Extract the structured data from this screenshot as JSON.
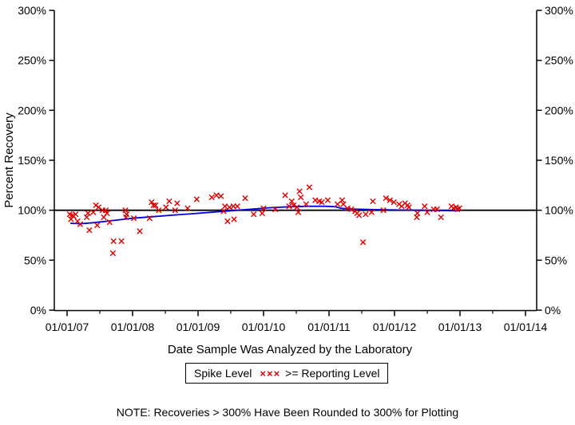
{
  "figure": {
    "y_axis_title": "Percent Recovery",
    "x_axis_title": "Date Sample Was Analyzed by the Laboratory",
    "note": "NOTE: Recoveries > 300% Have Been Rounded to 300% for Plotting",
    "legend": {
      "title": "Spike Level",
      "marker_symbols": "×××",
      "item_label": ">= Reporting Level"
    },
    "colors": {
      "marker": "#dd0000",
      "trend_line": "#0000dd",
      "axis": "#000000",
      "reference_line": "#000000"
    }
  },
  "chart_data": {
    "type": "scatter",
    "title": "",
    "xlabel": "Date Sample Was Analyzed by the Laboratory",
    "ylabel": "Percent Recovery",
    "xlim_years": [
      2006.8,
      2014.17
    ],
    "ylim": [
      0,
      300
    ],
    "grid": false,
    "legend_position": "bottom",
    "reference_line_y": 100,
    "x_ticks": [
      {
        "label": "01/01/07",
        "year": 2007
      },
      {
        "label": "01/01/08",
        "year": 2008
      },
      {
        "label": "01/01/09",
        "year": 2009
      },
      {
        "label": "01/01/10",
        "year": 2010
      },
      {
        "label": "01/01/11",
        "year": 2011
      },
      {
        "label": "01/01/12",
        "year": 2012
      },
      {
        "label": "01/01/13",
        "year": 2013
      },
      {
        "label": "01/01/14",
        "year": 2014
      }
    ],
    "x_minor_tick_years": [
      2007.5,
      2008.5,
      2009.5,
      2010.5,
      2011.5,
      2012.5,
      2013.5
    ],
    "y_ticks": [
      {
        "label": "0%",
        "value": 0
      },
      {
        "label": "50%",
        "value": 50
      },
      {
        "label": "100%",
        "value": 100
      },
      {
        "label": "150%",
        "value": 150
      },
      {
        "label": "200%",
        "value": 200
      },
      {
        "label": "250%",
        "value": 250
      },
      {
        "label": "300%",
        "value": 300
      }
    ],
    "series": [
      {
        "name": ">= Reporting Level",
        "type": "scatter",
        "marker": "x",
        "points": [
          [
            2007.04,
            96
          ],
          [
            2007.06,
            91
          ],
          [
            2007.08,
            95
          ],
          [
            2007.1,
            94
          ],
          [
            2007.13,
            96
          ],
          [
            2007.16,
            89
          ],
          [
            2007.2,
            86
          ],
          [
            2007.3,
            93
          ],
          [
            2007.32,
            97
          ],
          [
            2007.34,
            80
          ],
          [
            2007.4,
            98
          ],
          [
            2007.44,
            105
          ],
          [
            2007.46,
            85
          ],
          [
            2007.48,
            103
          ],
          [
            2007.54,
            100
          ],
          [
            2007.56,
            93
          ],
          [
            2007.59,
            100
          ],
          [
            2007.61,
            97
          ],
          [
            2007.65,
            88
          ],
          [
            2007.7,
            57
          ],
          [
            2007.71,
            69
          ],
          [
            2007.83,
            69
          ],
          [
            2007.89,
            100
          ],
          [
            2007.9,
            93
          ],
          [
            2007.91,
            96
          ],
          [
            2008.02,
            92
          ],
          [
            2008.11,
            79
          ],
          [
            2008.26,
            92
          ],
          [
            2008.29,
            108
          ],
          [
            2008.32,
            105
          ],
          [
            2008.35,
            105
          ],
          [
            2008.4,
            100
          ],
          [
            2008.51,
            103
          ],
          [
            2008.56,
            109
          ],
          [
            2008.65,
            100
          ],
          [
            2008.68,
            107
          ],
          [
            2008.84,
            102
          ],
          [
            2008.98,
            111
          ],
          [
            2009.21,
            113
          ],
          [
            2009.28,
            115
          ],
          [
            2009.35,
            114
          ],
          [
            2009.39,
            99
          ],
          [
            2009.41,
            104
          ],
          [
            2009.45,
            89
          ],
          [
            2009.48,
            103
          ],
          [
            2009.54,
            104
          ],
          [
            2009.55,
            91
          ],
          [
            2009.6,
            104
          ],
          [
            2009.72,
            112
          ],
          [
            2009.85,
            96
          ],
          [
            2009.98,
            97
          ],
          [
            2010.0,
            102
          ],
          [
            2010.18,
            101
          ],
          [
            2010.33,
            115
          ],
          [
            2010.39,
            104
          ],
          [
            2010.43,
            109
          ],
          [
            2010.46,
            105
          ],
          [
            2010.51,
            103
          ],
          [
            2010.53,
            98
          ],
          [
            2010.55,
            119
          ],
          [
            2010.57,
            113
          ],
          [
            2010.65,
            106
          ],
          [
            2010.7,
            123
          ],
          [
            2010.79,
            110
          ],
          [
            2010.85,
            109
          ],
          [
            2010.89,
            108
          ],
          [
            2010.98,
            110
          ],
          [
            2011.13,
            106
          ],
          [
            2011.2,
            110
          ],
          [
            2011.22,
            106
          ],
          [
            2011.28,
            102
          ],
          [
            2011.34,
            101
          ],
          [
            2011.4,
            99
          ],
          [
            2011.43,
            97
          ],
          [
            2011.46,
            95
          ],
          [
            2011.52,
            68
          ],
          [
            2011.56,
            96
          ],
          [
            2011.65,
            98
          ],
          [
            2011.67,
            109
          ],
          [
            2011.83,
            100
          ],
          [
            2011.87,
            112
          ],
          [
            2011.93,
            110
          ],
          [
            2011.99,
            108
          ],
          [
            2012.07,
            106
          ],
          [
            2012.11,
            104
          ],
          [
            2012.16,
            107
          ],
          [
            2012.2,
            105
          ],
          [
            2012.22,
            103
          ],
          [
            2012.34,
            93
          ],
          [
            2012.35,
            97
          ],
          [
            2012.46,
            104
          ],
          [
            2012.5,
            98
          ],
          [
            2012.6,
            101
          ],
          [
            2012.65,
            101
          ],
          [
            2012.71,
            93
          ],
          [
            2012.87,
            104
          ],
          [
            2012.9,
            102
          ],
          [
            2012.94,
            103
          ],
          [
            2012.96,
            101
          ],
          [
            2012.99,
            102
          ]
        ]
      },
      {
        "name": "trend",
        "type": "line",
        "points": [
          [
            2007.05,
            87
          ],
          [
            2007.2,
            86.5
          ],
          [
            2007.4,
            87.5
          ],
          [
            2007.6,
            89
          ],
          [
            2007.8,
            90.5
          ],
          [
            2008.0,
            92
          ],
          [
            2008.3,
            93.5
          ],
          [
            2008.6,
            95
          ],
          [
            2008.9,
            96.5
          ],
          [
            2009.2,
            98
          ],
          [
            2009.5,
            99.5
          ],
          [
            2009.8,
            101
          ],
          [
            2010.1,
            102.5
          ],
          [
            2010.4,
            103.5
          ],
          [
            2010.7,
            104
          ],
          [
            2010.95,
            104
          ],
          [
            2011.1,
            103.5
          ],
          [
            2011.18,
            102
          ],
          [
            2011.35,
            101.2
          ],
          [
            2011.7,
            100.6
          ],
          [
            2012.0,
            100.3
          ],
          [
            2012.4,
            100
          ],
          [
            2012.7,
            99.7
          ],
          [
            2012.99,
            99.5
          ]
        ]
      }
    ]
  }
}
